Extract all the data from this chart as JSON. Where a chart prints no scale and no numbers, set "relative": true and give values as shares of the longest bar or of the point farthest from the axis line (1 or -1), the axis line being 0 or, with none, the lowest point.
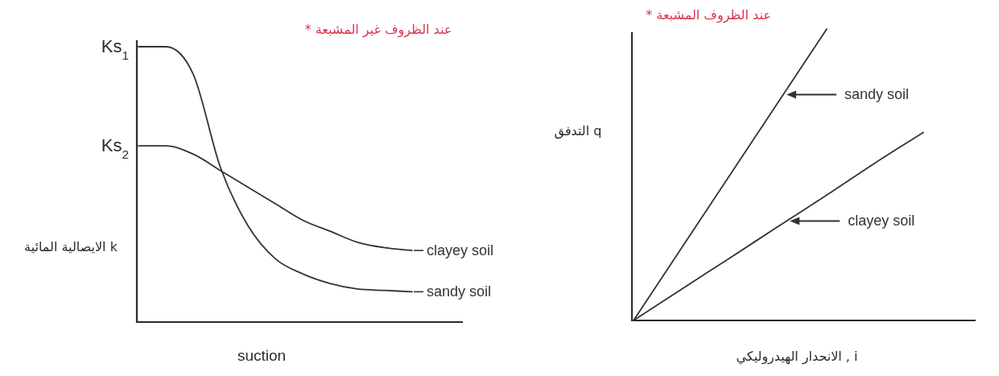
{
  "chart_data": [
    {
      "type": "line",
      "relative": true,
      "xlabel": "suction",
      "ylabel": "الايصالية المائية k",
      "legend": "right",
      "categories": [
        null,
        null,
        null,
        null,
        null,
        null,
        null,
        null,
        null,
        null,
        null
      ],
      "series": [
        {
          "name": "sandy soil",
          "color": "#333333",
          "values": [
            1.0,
            1.0,
            0.9,
            0.56,
            0.35,
            0.23,
            0.175,
            0.14,
            0.12,
            0.115,
            0.11
          ]
        },
        {
          "name": "clayey soil",
          "color": "#333333",
          "values": [
            0.64,
            0.64,
            0.61,
            0.55,
            0.49,
            0.43,
            0.37,
            0.33,
            0.29,
            0.27,
            0.26
          ]
        }
      ],
      "annotations": [
        "* عند الظروف غير المشبعة",
        "Ks$_{1}$",
        "Ks$_{2}$"
      ]
    },
    {
      "type": "line",
      "relative": true,
      "xlabel": "الانحدار الهيدروليكي , i",
      "ylabel": "التدفق q",
      "legend": "right",
      "categories": [
        null,
        null,
        null,
        null,
        null,
        null,
        null
      ],
      "series": [
        {
          "name": "sandy soil",
          "color": "#333333",
          "values": [
            0,
            0.25,
            0.5,
            0.75,
            1.0,
            null,
            null
          ]
        },
        {
          "name": "clayey soil",
          "color": "#333333",
          "values": [
            0,
            0.108,
            0.215,
            0.323,
            0.43,
            0.54,
            0.645
          ]
        }
      ],
      "annotations": [
        "* عند الظروف المشبعة"
      ]
    }
  ]
}
